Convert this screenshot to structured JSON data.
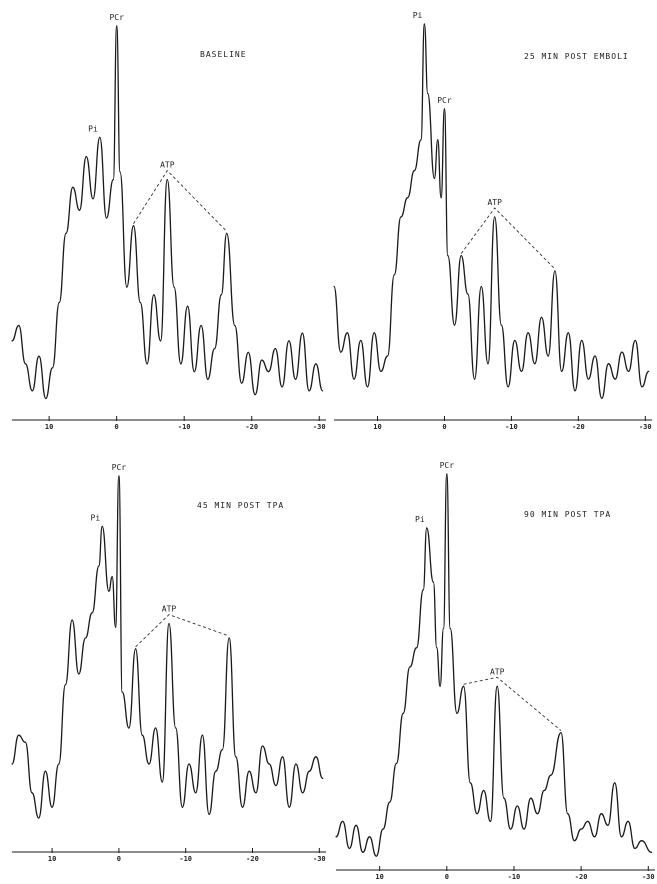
{
  "chart_data": [
    {
      "type": "line",
      "title": "BASELINE",
      "xticks": [
        10,
        0,
        -10,
        -20,
        -30
      ],
      "tick_labels": [
        "10",
        "0",
        "-10",
        "-20",
        "-30"
      ],
      "xlim": [
        15.5,
        -31
      ],
      "peak_labels": {
        "pi": "Pi",
        "pcr": "PCr",
        "atp": "ATP"
      },
      "peaks": [
        {
          "name": "Pi",
          "ppm": 2.5,
          "height": 0.71
        },
        {
          "name": "PCr",
          "ppm": 0,
          "height": 1.0
        },
        {
          "name": "ATP",
          "ppm": -2.5,
          "height": 0.48
        },
        {
          "name": "ATP",
          "ppm": -7.5,
          "height": 0.6
        },
        {
          "name": "ATP",
          "ppm": -16.3,
          "height": 0.46
        }
      ],
      "series": [
        {
          "x": [
            15.5,
            14.5,
            13.5,
            12.5,
            11.5,
            10.5,
            9.5,
            8.5,
            7.5,
            6.5,
            5.5,
            4.5,
            3.5,
            2.5,
            1.5,
            0.5,
            0,
            -0.5,
            -1.5,
            -2.5,
            -3.5,
            -4.5,
            -5.5,
            -6.5,
            -7.5,
            -8.5,
            -9.5,
            -10.5,
            -11.5,
            -12.5,
            -13.5,
            -14.5,
            -15.5,
            -16.3,
            -17.5,
            -18.5,
            -19.5,
            -20.5,
            -21.5,
            -22.5,
            -23.5,
            -24.5,
            -25.5,
            -26.5,
            -27.5,
            -28.5,
            -29.5,
            -30.5
          ],
          "y": [
            0.18,
            0.22,
            0.12,
            0.05,
            0.14,
            0.03,
            0.11,
            0.28,
            0.46,
            0.58,
            0.52,
            0.66,
            0.55,
            0.71,
            0.5,
            0.6,
            1.0,
            0.62,
            0.32,
            0.48,
            0.28,
            0.12,
            0.3,
            0.18,
            0.6,
            0.32,
            0.12,
            0.27,
            0.1,
            0.22,
            0.08,
            0.16,
            0.3,
            0.46,
            0.22,
            0.07,
            0.15,
            0.04,
            0.13,
            0.1,
            0.16,
            0.06,
            0.18,
            0.08,
            0.2,
            0.05,
            0.12,
            0.05
          ]
        }
      ]
    },
    {
      "type": "line",
      "title": "25 MIN POST EMBOLI",
      "xticks": [
        10,
        0,
        -10,
        -20,
        -30
      ],
      "tick_labels": [
        "10",
        "0",
        "-10",
        "-20",
        "-30"
      ],
      "xlim": [
        16.5,
        -31
      ],
      "peak_labels": {
        "pi": "Pi",
        "pcr": "PCr",
        "atp": "ATP"
      },
      "peaks": [
        {
          "name": "Pi",
          "ppm": 3,
          "height": 1.0
        },
        {
          "name": "PCr",
          "ppm": 0,
          "height": 0.78
        },
        {
          "name": "ATP",
          "ppm": -2.5,
          "height": 0.4
        },
        {
          "name": "ATP",
          "ppm": -7.5,
          "height": 0.5
        },
        {
          "name": "ATP",
          "ppm": -16.5,
          "height": 0.36
        }
      ],
      "series": [
        {
          "x": [
            16.5,
            15.5,
            14.5,
            13.5,
            12.5,
            11.5,
            10.5,
            9.5,
            8.5,
            7.5,
            6.5,
            5.5,
            4.5,
            3.5,
            3,
            2.5,
            1.5,
            1,
            0.5,
            0,
            -0.5,
            -1.5,
            -2.5,
            -3.5,
            -4.5,
            -5.5,
            -6.5,
            -7.5,
            -8.5,
            -9.5,
            -10.5,
            -11.5,
            -12.5,
            -13.5,
            -14.5,
            -15.5,
            -16.5,
            -17.5,
            -18.5,
            -19.5,
            -20.5,
            -21.5,
            -22.5,
            -23.5,
            -24.5,
            -25.5,
            -26.5,
            -27.5,
            -28.5,
            -29.5,
            -30.5
          ],
          "y": [
            0.32,
            0.15,
            0.2,
            0.08,
            0.18,
            0.06,
            0.2,
            0.1,
            0.14,
            0.35,
            0.5,
            0.55,
            0.62,
            0.7,
            1.0,
            0.82,
            0.6,
            0.7,
            0.55,
            0.78,
            0.4,
            0.22,
            0.4,
            0.3,
            0.08,
            0.32,
            0.12,
            0.5,
            0.22,
            0.06,
            0.18,
            0.1,
            0.2,
            0.12,
            0.24,
            0.14,
            0.36,
            0.1,
            0.2,
            0.05,
            0.18,
            0.08,
            0.14,
            0.03,
            0.12,
            0.08,
            0.15,
            0.1,
            0.18,
            0.06,
            0.1
          ]
        }
      ]
    },
    {
      "type": "line",
      "title": "45 MIN POST TPA",
      "xticks": [
        10,
        0,
        -10,
        -20,
        -30
      ],
      "tick_labels": [
        "10",
        "0",
        "-10",
        "-20",
        "-30"
      ],
      "xlim": [
        16,
        -31
      ],
      "peak_labels": {
        "pi": "Pi",
        "pcr": "PCr",
        "atp": "ATP"
      },
      "peaks": [
        {
          "name": "Pi",
          "ppm": 2.5,
          "height": 0.86
        },
        {
          "name": "PCr",
          "ppm": 0,
          "height": 1.0
        },
        {
          "name": "ATP",
          "ppm": -2.5,
          "height": 0.52
        },
        {
          "name": "ATP",
          "ppm": -7.5,
          "height": 0.59
        },
        {
          "name": "ATP",
          "ppm": -16.5,
          "height": 0.55
        }
      ],
      "series": [
        {
          "x": [
            16,
            15,
            14,
            13,
            12,
            11,
            10,
            9,
            8,
            7,
            6,
            5,
            4,
            3,
            2.5,
            1.5,
            1,
            0.5,
            0,
            -0.5,
            -1.5,
            -2.5,
            -3.5,
            -4.5,
            -5.5,
            -6.5,
            -7.5,
            -8.5,
            -9.5,
            -10.5,
            -11.5,
            -12.5,
            -13.5,
            -14.5,
            -15.5,
            -16.5,
            -17.5,
            -18.5,
            -19.5,
            -20.5,
            -21.5,
            -22.5,
            -23.5,
            -24.5,
            -25.5,
            -26.5,
            -27.5,
            -28.5,
            -29.5,
            -30.5
          ],
          "y": [
            0.2,
            0.28,
            0.26,
            0.12,
            0.05,
            0.18,
            0.08,
            0.2,
            0.42,
            0.6,
            0.45,
            0.55,
            0.62,
            0.75,
            0.86,
            0.68,
            0.72,
            0.58,
            1.0,
            0.4,
            0.3,
            0.52,
            0.28,
            0.2,
            0.3,
            0.15,
            0.59,
            0.3,
            0.08,
            0.2,
            0.12,
            0.28,
            0.06,
            0.18,
            0.24,
            0.55,
            0.22,
            0.08,
            0.18,
            0.12,
            0.25,
            0.2,
            0.14,
            0.22,
            0.08,
            0.2,
            0.12,
            0.18,
            0.22,
            0.16
          ]
        }
      ]
    },
    {
      "type": "line",
      "title": "90 MIN POST TPA",
      "xticks": [
        10,
        0,
        -10,
        -20,
        -30
      ],
      "tick_labels": [
        "10",
        "0",
        "-10",
        "-20",
        "-30"
      ],
      "xlim": [
        16.5,
        -31
      ],
      "peak_labels": {
        "pi": "Pi",
        "pcr": "PCr",
        "atp": "ATP"
      },
      "peaks": [
        {
          "name": "Pi",
          "ppm": 3,
          "height": 0.86
        },
        {
          "name": "PCr",
          "ppm": 0,
          "height": 1.0
        },
        {
          "name": "ATP",
          "ppm": -2.5,
          "height": 0.45
        },
        {
          "name": "ATP",
          "ppm": -7.5,
          "height": 0.45
        },
        {
          "name": "ATP",
          "ppm": -17,
          "height": 0.33
        }
      ],
      "series": [
        {
          "x": [
            16.5,
            15.5,
            14.5,
            13.5,
            12.5,
            11.5,
            10.5,
            9.5,
            8.5,
            7.5,
            6.5,
            5.5,
            4.5,
            3.5,
            3,
            2,
            1.5,
            1,
            0.5,
            0,
            -0.5,
            -1.5,
            -2.5,
            -3.5,
            -4.5,
            -5.5,
            -6.5,
            -7.5,
            -8.5,
            -9.5,
            -10.5,
            -11.5,
            -12.5,
            -13.5,
            -14.5,
            -15.5,
            -17,
            -18,
            -19,
            -20,
            -21,
            -22,
            -23,
            -24,
            -25,
            -26,
            -27,
            -28,
            -29,
            -30.5
          ],
          "y": [
            0.06,
            0.1,
            0.03,
            0.09,
            0.02,
            0.06,
            0.01,
            0.08,
            0.15,
            0.25,
            0.38,
            0.5,
            0.55,
            0.7,
            0.86,
            0.72,
            0.55,
            0.45,
            0.6,
            1.0,
            0.6,
            0.38,
            0.45,
            0.2,
            0.12,
            0.18,
            0.1,
            0.45,
            0.16,
            0.08,
            0.14,
            0.08,
            0.16,
            0.12,
            0.18,
            0.22,
            0.33,
            0.12,
            0.05,
            0.08,
            0.1,
            0.06,
            0.12,
            0.09,
            0.2,
            0.06,
            0.1,
            0.03,
            0.05,
            0.02
          ]
        }
      ]
    }
  ]
}
